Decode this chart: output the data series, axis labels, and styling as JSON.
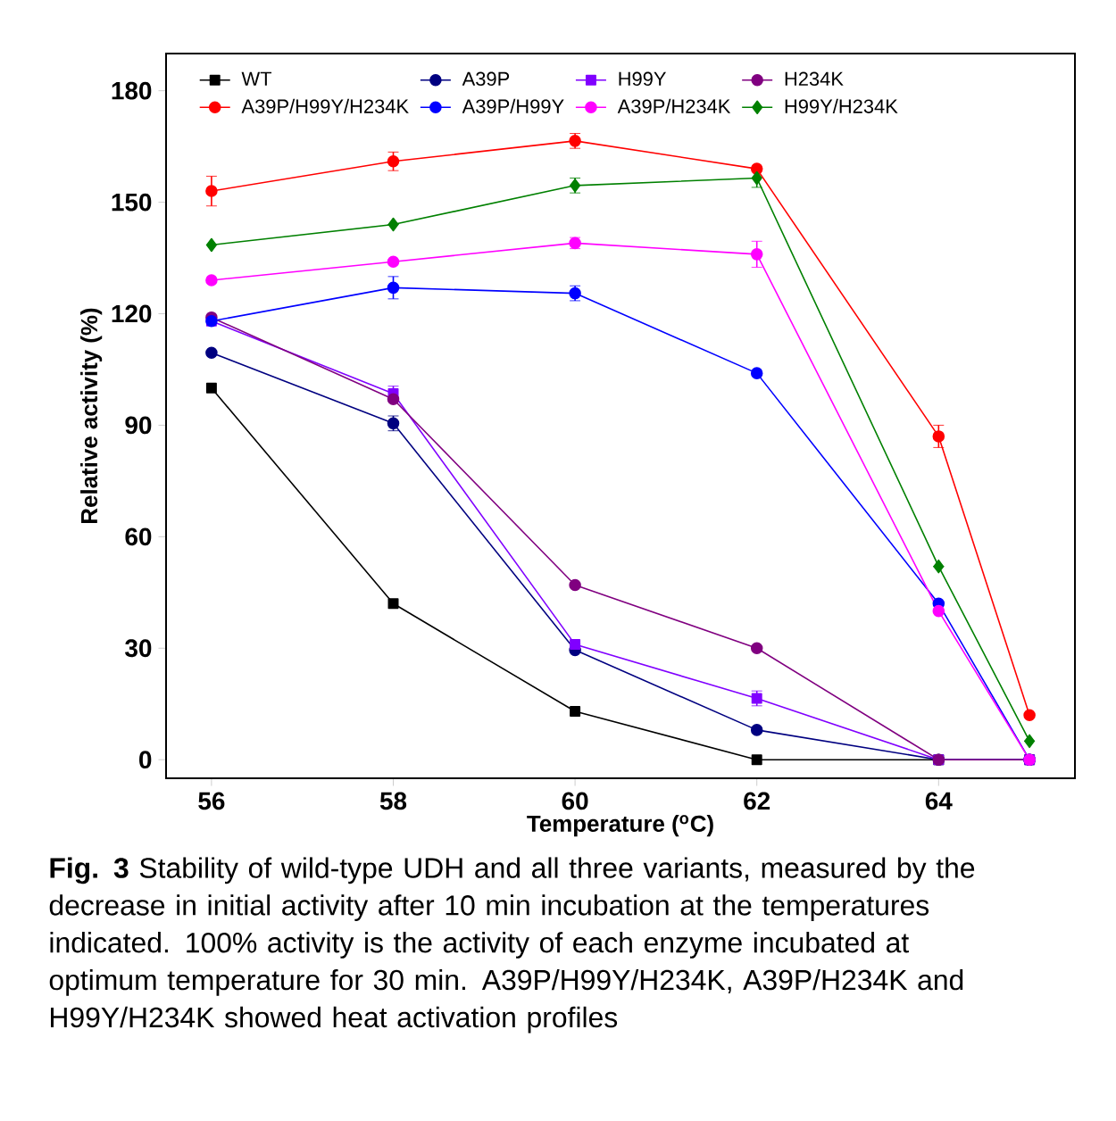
{
  "chart_data": {
    "type": "line",
    "xlabel": "Temperature ($^{o}$C)",
    "ylabel": "Relative activity (%)",
    "x": [
      56,
      58,
      60,
      62,
      64,
      65
    ],
    "xlim": [
      55.5,
      65.5
    ],
    "xticks": [
      56,
      58,
      60,
      62,
      64
    ],
    "ylim": [
      -5,
      190
    ],
    "yticks": [
      0,
      30,
      60,
      90,
      120,
      150,
      180
    ],
    "legend": "top",
    "grid": false,
    "line_style": "solid",
    "series": [
      {
        "name": "WT",
        "color": "#000000",
        "marker": "square",
        "values": [
          100,
          42,
          13,
          0,
          0,
          0
        ]
      },
      {
        "name": "A39P",
        "color": "#000080",
        "marker": "circle",
        "values": [
          109.5,
          90.5,
          29.5,
          8,
          0,
          0
        ],
        "errors": [
          null,
          2,
          null,
          null,
          null,
          null
        ]
      },
      {
        "name": "H99Y",
        "color": "#8000ff",
        "marker": "square",
        "values": [
          118,
          98.5,
          31,
          16.5,
          0,
          0
        ],
        "errors": [
          null,
          2,
          null,
          2,
          null,
          null
        ]
      },
      {
        "name": "H234K",
        "color": "#800080",
        "marker": "circle",
        "values": [
          119,
          97,
          47,
          30,
          0,
          0
        ]
      },
      {
        "name": "A39P/H99Y/H234K",
        "color": "#ff0000",
        "marker": "circle",
        "values": [
          153,
          161,
          166.5,
          159,
          87,
          12
        ],
        "errors": [
          4,
          2.5,
          2,
          null,
          3,
          null
        ]
      },
      {
        "name": "A39P/H99Y",
        "color": "#0000ff",
        "marker": "circle",
        "values": [
          118,
          127,
          125.5,
          104,
          42,
          0
        ],
        "errors": [
          null,
          3,
          2,
          null,
          null,
          null
        ]
      },
      {
        "name": "A39P/H234K",
        "color": "#ff00ff",
        "marker": "circle",
        "values": [
          129,
          134,
          139,
          136,
          40,
          0
        ],
        "errors": [
          null,
          null,
          1.5,
          3.5,
          null,
          null
        ]
      },
      {
        "name": "H99Y/H234K",
        "color": "#008000",
        "marker": "diamond",
        "values": [
          138.5,
          144,
          154.5,
          156.5,
          52,
          5
        ],
        "errors": [
          null,
          null,
          2,
          2.5,
          null,
          null
        ]
      }
    ],
    "annotations": [
      "**Fig. 3** Stability of wild-type UDH and all three variants, measured by the decrease in initial activity after 10 min incubation at the temperatures indicated. 100% activity is the activity of each enzyme incubated at optimum temperature for 30 min. A39P/H99Y/H234K, A39P/H234K and H99Y/H234K showed heat activation profiles"
    ]
  }
}
